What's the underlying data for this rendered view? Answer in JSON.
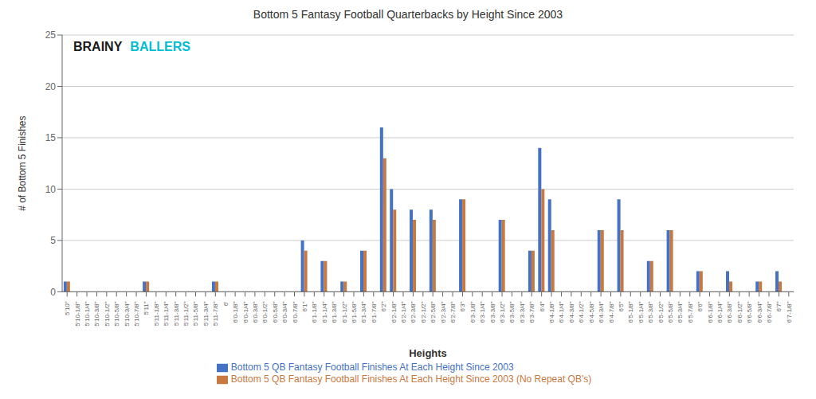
{
  "chart_data": {
    "type": "bar",
    "title": "Bottom 5 Fantasy Football Quarterbacks by Height Since 2003",
    "xlabel": "Heights",
    "ylabel": "# of Bottom 5 Finishes",
    "categories": [
      "5'10\"",
      "5'10-1/8\"",
      "5'10-1/4\"",
      "5'10-3/8\"",
      "5'10-1/2\"",
      "5'10-5/8\"",
      "5'10-3/4\"",
      "5'10-7/8\"",
      "5'11\"",
      "5'11-1/8\"",
      "5'11-1/4\"",
      "5'11-3/8\"",
      "5'11-1/2\"",
      "5'11-5/8\"",
      "5'11-3/4\"",
      "5'11-7/8\"",
      "6'",
      "6'0-1/8\"",
      "6'0-1/4\"",
      "6'0-3/8\"",
      "6'0-1/2\"",
      "6'0-5/8\"",
      "6'0-3/4\"",
      "6'0-7/8\"",
      "6'1\"",
      "6'1-1/8\"",
      "6'1-1/4\"",
      "6'1-3/8\"",
      "6'1-1/2\"",
      "6'1-5/8\"",
      "6'1-3/4\"",
      "6'1-7/8\"",
      "6'2\"",
      "6'2-1/8\"",
      "6'2-1/4\"",
      "6'2-3/8\"",
      "6'2-1/2\"",
      "6'2-5/8\"",
      "6'2-3/4\"",
      "6'2-7/8\"",
      "6'3\"",
      "6'3-1/8\"",
      "6'3-1/4\"",
      "6'3-3/8\"",
      "6'3-1/2\"",
      "6'3-5/8\"",
      "6'3-3/4\"",
      "6'3-7/8\"",
      "6'4\"",
      "6'4-1/8\"",
      "6'4-1/4\"",
      "6'4-3/8\"",
      "6'4-1/2\"",
      "6'4-5/8\"",
      "6'4-3/4\"",
      "6'4-7/8\"",
      "6'5\"",
      "6'5-1/8\"",
      "6'5-1/4\"",
      "6'5-3/8\"",
      "6'5-1/2\"",
      "6'5-5/8\"",
      "6'5-3/4\"",
      "6'5-7/8\"",
      "6'6\"",
      "6'6-1/8\"",
      "6'6-1/4\"",
      "6'6-3/8\"",
      "6'6-1/2\"",
      "6'6-5/8\"",
      "6'6-3/4\"",
      "6'6-7/8\"",
      "6'7\"",
      "6'7-1/8\""
    ],
    "series": [
      {
        "name": "Bottom 5 QB Fantasy Football Finishes At Each Height Since 2003",
        "color": "#4472c4",
        "values": [
          1,
          0,
          0,
          0,
          0,
          0,
          0,
          0,
          1,
          0,
          0,
          0,
          0,
          0,
          0,
          1,
          0,
          0,
          0,
          0,
          0,
          0,
          0,
          0,
          5,
          0,
          3,
          0,
          1,
          0,
          4,
          0,
          16,
          10,
          0,
          8,
          0,
          8,
          0,
          0,
          9,
          0,
          0,
          0,
          7,
          0,
          0,
          4,
          14,
          9,
          0,
          0,
          0,
          0,
          6,
          0,
          9,
          0,
          0,
          3,
          0,
          6,
          0,
          0,
          2,
          0,
          0,
          2,
          0,
          0,
          1,
          0,
          2,
          0
        ]
      },
      {
        "name": "Bottom 5 QB Fantasy Football Finishes At Each Height Since 2003 (No Repeat QB's)",
        "color": "#c87941",
        "values": [
          1,
          0,
          0,
          0,
          0,
          0,
          0,
          0,
          1,
          0,
          0,
          0,
          0,
          0,
          0,
          1,
          0,
          0,
          0,
          0,
          0,
          0,
          0,
          0,
          4,
          0,
          3,
          0,
          1,
          0,
          4,
          0,
          13,
          8,
          0,
          7,
          0,
          7,
          0,
          0,
          9,
          0,
          0,
          0,
          7,
          0,
          0,
          4,
          10,
          6,
          0,
          0,
          0,
          0,
          6,
          0,
          6,
          0,
          0,
          3,
          0,
          6,
          0,
          0,
          2,
          0,
          0,
          1,
          0,
          0,
          1,
          0,
          1,
          0
        ]
      }
    ],
    "ylim": [
      0,
      25
    ],
    "yticks": [
      0,
      5,
      10,
      15,
      20,
      25
    ],
    "grid": true,
    "annotations": [
      {
        "text": "BRAINY",
        "color": "#1a1a1a"
      },
      {
        "text": "BALLERS",
        "color": "#00bcd4"
      }
    ]
  }
}
